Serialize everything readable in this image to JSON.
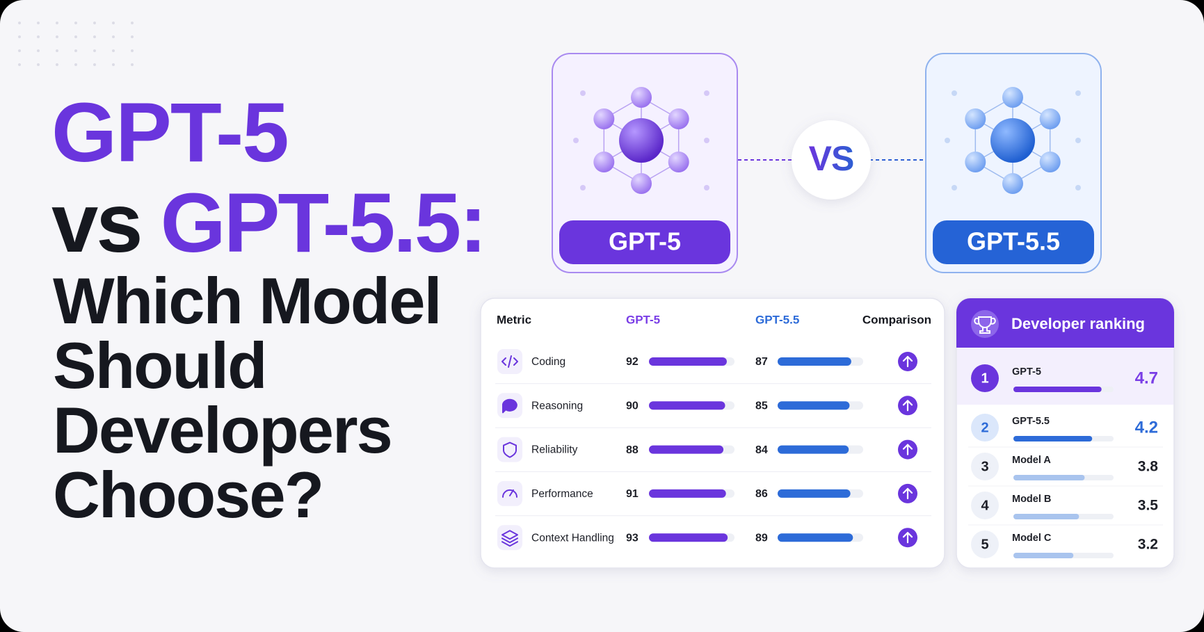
{
  "title": {
    "line1": "GPT-5",
    "vs": "vs",
    "line2": "GPT-5.5:",
    "rest": [
      "Which Model",
      "Should",
      "Developers",
      "Choose?"
    ]
  },
  "models": {
    "left": "GPT-5",
    "vs": "VS",
    "right": "GPT-5.5"
  },
  "table": {
    "headers": [
      "Metric",
      "GPT-5",
      "GPT-5.5",
      "Comparison"
    ],
    "rows": [
      {
        "metric": "Coding",
        "gpt5": 92,
        "gpt55": 87
      },
      {
        "metric": "Reasoning",
        "gpt5": 90,
        "gpt55": 85
      },
      {
        "metric": "Reliability",
        "gpt5": 88,
        "gpt55": 84
      },
      {
        "metric": "Performance",
        "gpt5": 91,
        "gpt55": 86
      },
      {
        "metric": "Context Handling",
        "gpt5": 93,
        "gpt55": 89
      }
    ]
  },
  "ranking": {
    "title": "Developer ranking",
    "rows": [
      {
        "rank": 1,
        "name": "GPT-5",
        "score": 4.7
      },
      {
        "rank": 2,
        "name": "GPT-5.5",
        "score": 4.2
      },
      {
        "rank": 3,
        "name": "Model A",
        "score": 3.8
      },
      {
        "rank": 4,
        "name": "Model B",
        "score": 3.5
      },
      {
        "rank": 5,
        "name": "Model C",
        "score": 3.2
      }
    ]
  }
}
